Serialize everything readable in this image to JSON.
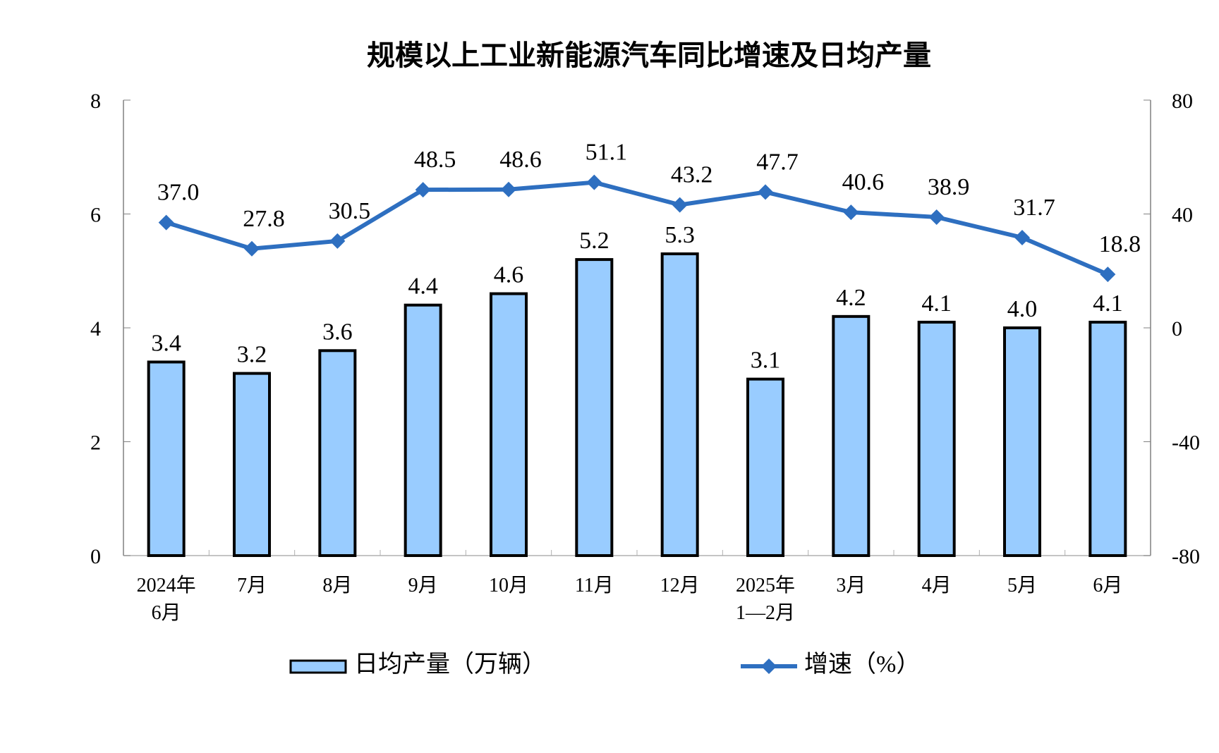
{
  "chart_data": {
    "type": "bar+line",
    "title": "规模以上工业新能源汽车同比增速及日均产量",
    "categories": [
      [
        "2024年",
        "6月"
      ],
      [
        "7月"
      ],
      [
        "8月"
      ],
      [
        "9月"
      ],
      [
        "10月"
      ],
      [
        "11月"
      ],
      [
        "12月"
      ],
      [
        "2025年",
        "1—2月"
      ],
      [
        "3月"
      ],
      [
        "4月"
      ],
      [
        "5月"
      ],
      [
        "6月"
      ]
    ],
    "series": [
      {
        "name": "日均产量（万辆）",
        "type": "bar",
        "axis": "left",
        "color": "#99CCFF",
        "values": [
          3.4,
          3.2,
          3.6,
          4.4,
          4.6,
          5.2,
          5.3,
          3.1,
          4.2,
          4.1,
          4.0,
          4.1
        ],
        "labels": [
          "3.4",
          "3.2",
          "3.6",
          "4.4",
          "4.6",
          "5.2",
          "5.3",
          "3.1",
          "4.2",
          "4.1",
          "4.0",
          "4.1"
        ]
      },
      {
        "name": "增速（%）",
        "type": "line",
        "axis": "right",
        "color": "#2E6FC0",
        "values": [
          37.0,
          27.8,
          30.5,
          48.5,
          48.6,
          51.1,
          43.2,
          47.7,
          40.6,
          38.9,
          31.7,
          18.8
        ],
        "labels": [
          "37.0",
          "27.8",
          "30.5",
          "48.5",
          "48.6",
          "51.1",
          "43.2",
          "47.7",
          "40.6",
          "38.9",
          "31.7",
          "18.8"
        ]
      }
    ],
    "y_left": {
      "range": [
        0,
        8
      ],
      "ticks": [
        "0",
        "2",
        "4",
        "6",
        "8"
      ]
    },
    "y_right": {
      "range": [
        -80,
        80
      ],
      "ticks": [
        "-80",
        "-40",
        "0",
        "40",
        "80"
      ]
    },
    "grid": false,
    "legend_position": "bottom"
  }
}
